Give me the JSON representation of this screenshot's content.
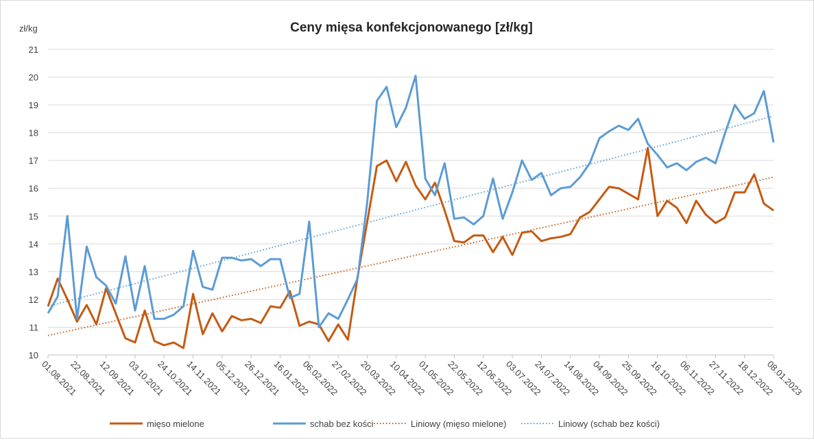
{
  "chart_data": {
    "type": "line",
    "title": "Ceny mięsa konfekcjonowanego [zł/kg]",
    "y_label": "zł/kg",
    "categories": [
      "01.08.2021",
      null,
      null,
      "22.08.2021",
      null,
      null,
      "12.09.2021",
      null,
      null,
      "03.10.2021",
      null,
      null,
      "24.10.2021",
      null,
      null,
      "14.11.2021",
      null,
      null,
      "05.12.2021",
      null,
      null,
      "26.12.2021",
      null,
      null,
      "16.01.2022",
      null,
      null,
      "06.02.2022",
      null,
      null,
      "27.02.2022",
      null,
      null,
      "20.03.2022",
      null,
      null,
      "10.04.2022",
      null,
      null,
      "01.05.2022",
      null,
      null,
      "22.05.2022",
      null,
      null,
      "12.06.2022",
      null,
      null,
      "03.07.2022",
      null,
      null,
      "24.07.2022",
      null,
      null,
      "14.08.2022",
      null,
      null,
      "04.09.2022",
      null,
      null,
      "25.09.2022",
      null,
      null,
      "16.10.2022",
      null,
      null,
      "06.11.2022",
      null,
      null,
      "27.11.2022",
      null,
      null,
      "18.12.2022",
      null,
      null,
      "08.01.2023"
    ],
    "series": [
      {
        "name": "mięso mielone",
        "color": "#c55a11",
        "values": [
          11.75,
          12.75,
          12.0,
          11.2,
          11.8,
          11.1,
          12.4,
          11.5,
          10.6,
          10.45,
          11.6,
          10.5,
          10.35,
          10.45,
          10.25,
          12.2,
          10.75,
          11.5,
          10.85,
          11.4,
          11.25,
          11.3,
          11.15,
          11.75,
          11.7,
          12.3,
          11.05,
          11.2,
          11.1,
          10.5,
          11.1,
          10.55,
          12.8,
          14.8,
          16.8,
          17.0,
          16.25,
          16.95,
          16.1,
          15.6,
          16.2,
          15.2,
          14.1,
          14.05,
          14.3,
          14.3,
          13.7,
          14.25,
          13.6,
          14.4,
          14.45,
          14.1,
          14.2,
          14.25,
          14.35,
          14.95,
          15.15,
          15.6,
          16.05,
          16.0,
          15.8,
          15.6,
          17.45,
          15.0,
          15.55,
          15.3,
          14.75,
          15.55,
          15.05,
          14.75,
          14.95,
          15.85,
          15.85,
          16.5,
          15.45,
          15.2
        ]
      },
      {
        "name": "schab bez kości",
        "color": "#5b9bd5",
        "values": [
          11.5,
          12.1,
          15.0,
          11.3,
          13.9,
          12.8,
          12.5,
          11.85,
          13.55,
          11.6,
          13.2,
          11.3,
          11.3,
          11.45,
          11.75,
          13.75,
          12.45,
          12.35,
          13.5,
          13.5,
          13.4,
          13.45,
          13.2,
          13.45,
          13.45,
          12.05,
          12.2,
          14.8,
          11.0,
          11.5,
          11.3,
          12.0,
          12.75,
          15.5,
          19.15,
          19.65,
          18.2,
          18.9,
          20.05,
          16.35,
          15.75,
          16.9,
          14.9,
          14.95,
          14.7,
          15.0,
          16.35,
          14.9,
          15.85,
          17.0,
          16.3,
          16.55,
          15.75,
          16.0,
          16.05,
          16.4,
          16.9,
          17.8,
          18.05,
          18.25,
          18.1,
          18.5,
          17.6,
          17.2,
          16.75,
          16.9,
          16.65,
          16.95,
          17.1,
          16.9,
          18.0,
          19.0,
          18.5,
          18.7,
          19.5,
          17.65
        ]
      }
    ],
    "trendlines": [
      {
        "name": "Liniowy (mięso mielone)",
        "color": "#c55a11",
        "start": 10.7,
        "end": 16.4
      },
      {
        "name": "Liniowy (schab bez kości)",
        "color": "#5b9bd5",
        "start": 11.75,
        "end": 18.6
      }
    ],
    "ylim": [
      10,
      21
    ],
    "yticks": [
      10,
      11,
      12,
      13,
      14,
      15,
      16,
      17,
      18,
      19,
      20,
      21
    ],
    "grid": true
  }
}
